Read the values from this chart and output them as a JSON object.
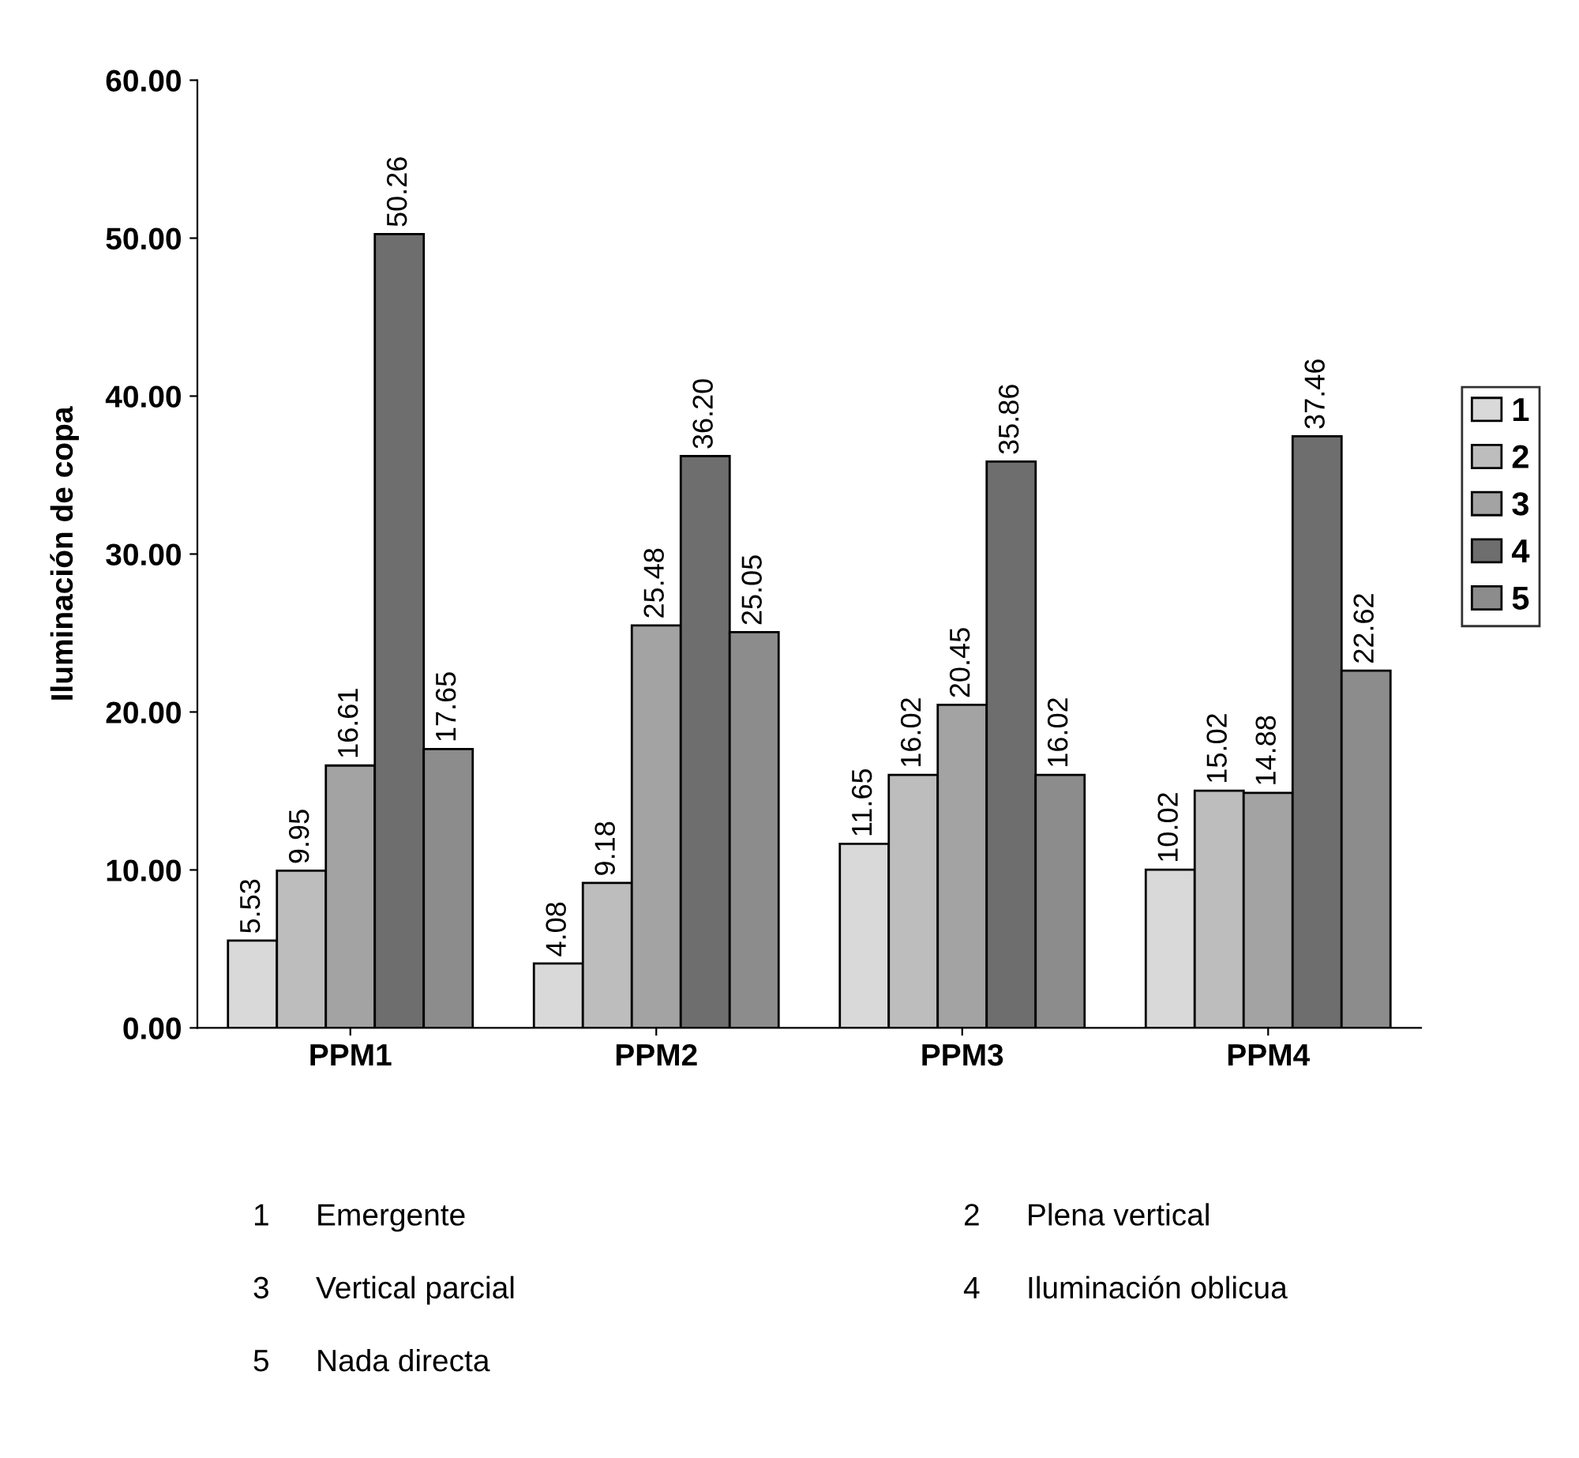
{
  "chart_data": {
    "type": "bar",
    "ylabel": "Iluminación de copa",
    "categories": [
      "PPM1",
      "PPM2",
      "PPM3",
      "PPM4"
    ],
    "series": [
      {
        "name": "1",
        "color": "#d9d9d9",
        "values": [
          5.53,
          4.08,
          11.65,
          10.02
        ]
      },
      {
        "name": "2",
        "color": "#bdbdbd",
        "values": [
          9.95,
          9.18,
          16.02,
          15.02
        ]
      },
      {
        "name": "3",
        "color": "#a3a3a3",
        "values": [
          16.61,
          25.48,
          20.45,
          14.88
        ]
      },
      {
        "name": "4",
        "color": "#6e6e6e",
        "values": [
          50.26,
          36.2,
          35.86,
          37.46
        ]
      },
      {
        "name": "5",
        "color": "#8c8c8c",
        "values": [
          17.65,
          25.05,
          16.02,
          22.62
        ]
      }
    ],
    "ylim": [
      0,
      60
    ],
    "yticks": [
      {
        "value": 0,
        "label": "0.00"
      },
      {
        "value": 10,
        "label": "10.00"
      },
      {
        "value": 20,
        "label": "20.00"
      },
      {
        "value": 30,
        "label": "30.00"
      },
      {
        "value": 40,
        "label": "40.00"
      },
      {
        "value": 50,
        "label": "50.00"
      },
      {
        "value": 60,
        "label": "60.00"
      }
    ],
    "value_labels": [
      [
        "5.53",
        "4.08",
        "11.65",
        "10.02"
      ],
      [
        "9.95",
        "9.18",
        "16.02",
        "15.02"
      ],
      [
        "16.61",
        "25.48",
        "20.45",
        "14.88"
      ],
      [
        "50.26",
        "36.20",
        "35.86",
        "37.46"
      ],
      [
        "17.65",
        "25.05",
        "16.02",
        "22.62"
      ]
    ],
    "grid": false,
    "legend": "right",
    "annotations": [
      "1 Emergente",
      "2 Plena vertical",
      "3 Vertical parcial",
      "4 Iluminación oblicua",
      "5 Nada directa"
    ]
  }
}
